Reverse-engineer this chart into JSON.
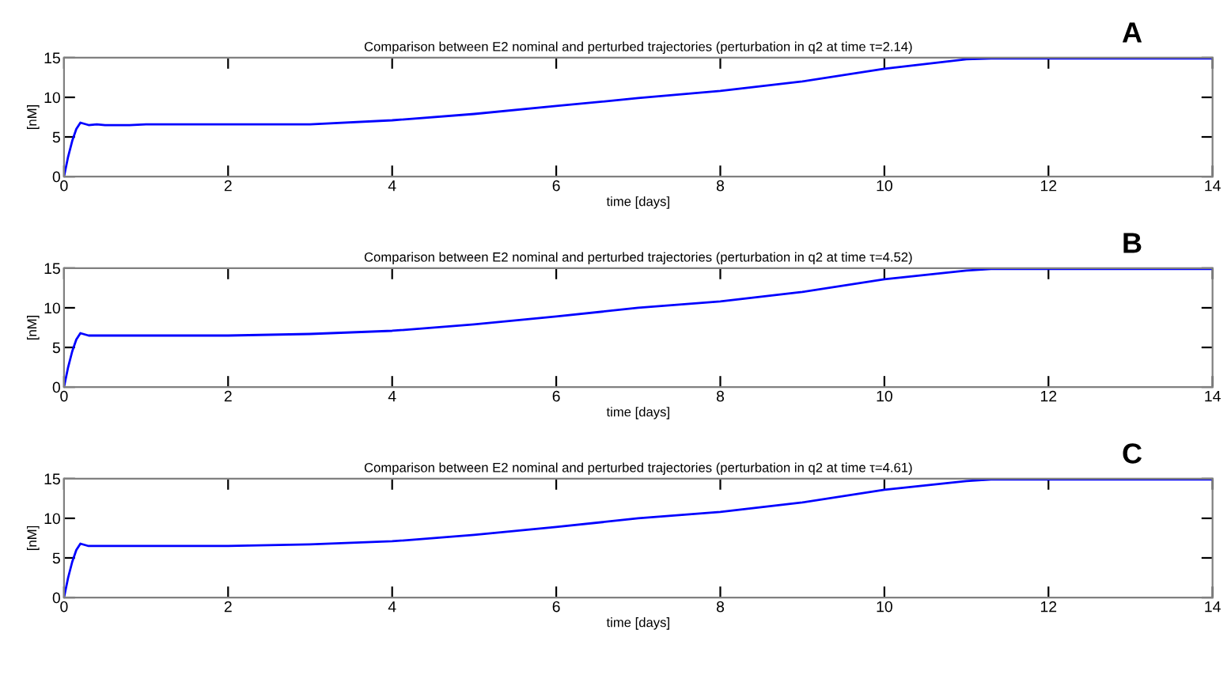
{
  "chart_data": [
    {
      "type": "line",
      "title": "Comparison between E2 nominal and perturbed trajectories (perturbation in q2 at time τ=2.14)",
      "xlabel": "time [days]",
      "ylabel": "[nM]",
      "annotations": [
        "A"
      ],
      "xlim": [
        0,
        14
      ],
      "ylim": [
        0,
        15
      ],
      "xticks": [
        0,
        2,
        4,
        6,
        8,
        10,
        12,
        14
      ],
      "yticks": [
        0,
        5,
        10,
        15
      ],
      "grid": false,
      "legend": false,
      "series": [
        {
          "color": "#0000ff",
          "x": [
            0,
            0.05,
            0.1,
            0.15,
            0.2,
            0.3,
            0.4,
            0.5,
            0.8,
            1,
            2,
            3,
            4,
            5,
            6,
            7,
            8,
            9,
            10,
            11,
            11.3,
            14
          ],
          "values": [
            0,
            2.5,
            4.5,
            6.0,
            6.8,
            6.5,
            6.6,
            6.5,
            6.5,
            6.6,
            6.6,
            6.6,
            7.1,
            7.9,
            8.9,
            9.9,
            10.8,
            12.0,
            13.6,
            14.8,
            14.9,
            14.9
          ]
        }
      ]
    },
    {
      "type": "line",
      "title": "Comparison between E2 nominal and perturbed trajectories (perturbation in q2 at time τ=4.52)",
      "xlabel": "time [days]",
      "ylabel": "[nM]",
      "annotations": [
        "B"
      ],
      "xlim": [
        0,
        14
      ],
      "ylim": [
        0,
        15
      ],
      "xticks": [
        0,
        2,
        4,
        6,
        8,
        10,
        12,
        14
      ],
      "yticks": [
        0,
        5,
        10,
        15
      ],
      "grid": false,
      "legend": false,
      "series": [
        {
          "color": "#0000ff",
          "x": [
            0,
            0.05,
            0.1,
            0.15,
            0.2,
            0.3,
            1,
            2,
            3,
            4,
            5,
            6,
            7,
            8,
            9,
            10,
            11,
            11.3,
            14
          ],
          "values": [
            0,
            2.5,
            4.5,
            6.0,
            6.8,
            6.5,
            6.5,
            6.5,
            6.7,
            7.1,
            7.9,
            8.9,
            10.0,
            10.8,
            12.0,
            13.6,
            14.7,
            14.9,
            14.9
          ]
        }
      ]
    },
    {
      "type": "line",
      "title": "Comparison between E2 nominal and perturbed trajectories (perturbation in q2 at time τ=4.61)",
      "xlabel": "time [days]",
      "ylabel": "[nM]",
      "annotations": [
        "C"
      ],
      "xlim": [
        0,
        14
      ],
      "ylim": [
        0,
        15
      ],
      "xticks": [
        0,
        2,
        4,
        6,
        8,
        10,
        12,
        14
      ],
      "yticks": [
        0,
        5,
        10,
        15
      ],
      "grid": false,
      "legend": false,
      "series": [
        {
          "color": "#0000ff",
          "x": [
            0,
            0.05,
            0.1,
            0.15,
            0.2,
            0.3,
            1,
            2,
            3,
            4,
            5,
            6,
            7,
            8,
            9,
            10,
            11,
            11.3,
            14
          ],
          "values": [
            0,
            2.5,
            4.5,
            6.0,
            6.8,
            6.5,
            6.5,
            6.5,
            6.7,
            7.1,
            7.9,
            8.9,
            10.0,
            10.8,
            12.0,
            13.6,
            14.7,
            14.9,
            14.9
          ]
        }
      ]
    }
  ]
}
